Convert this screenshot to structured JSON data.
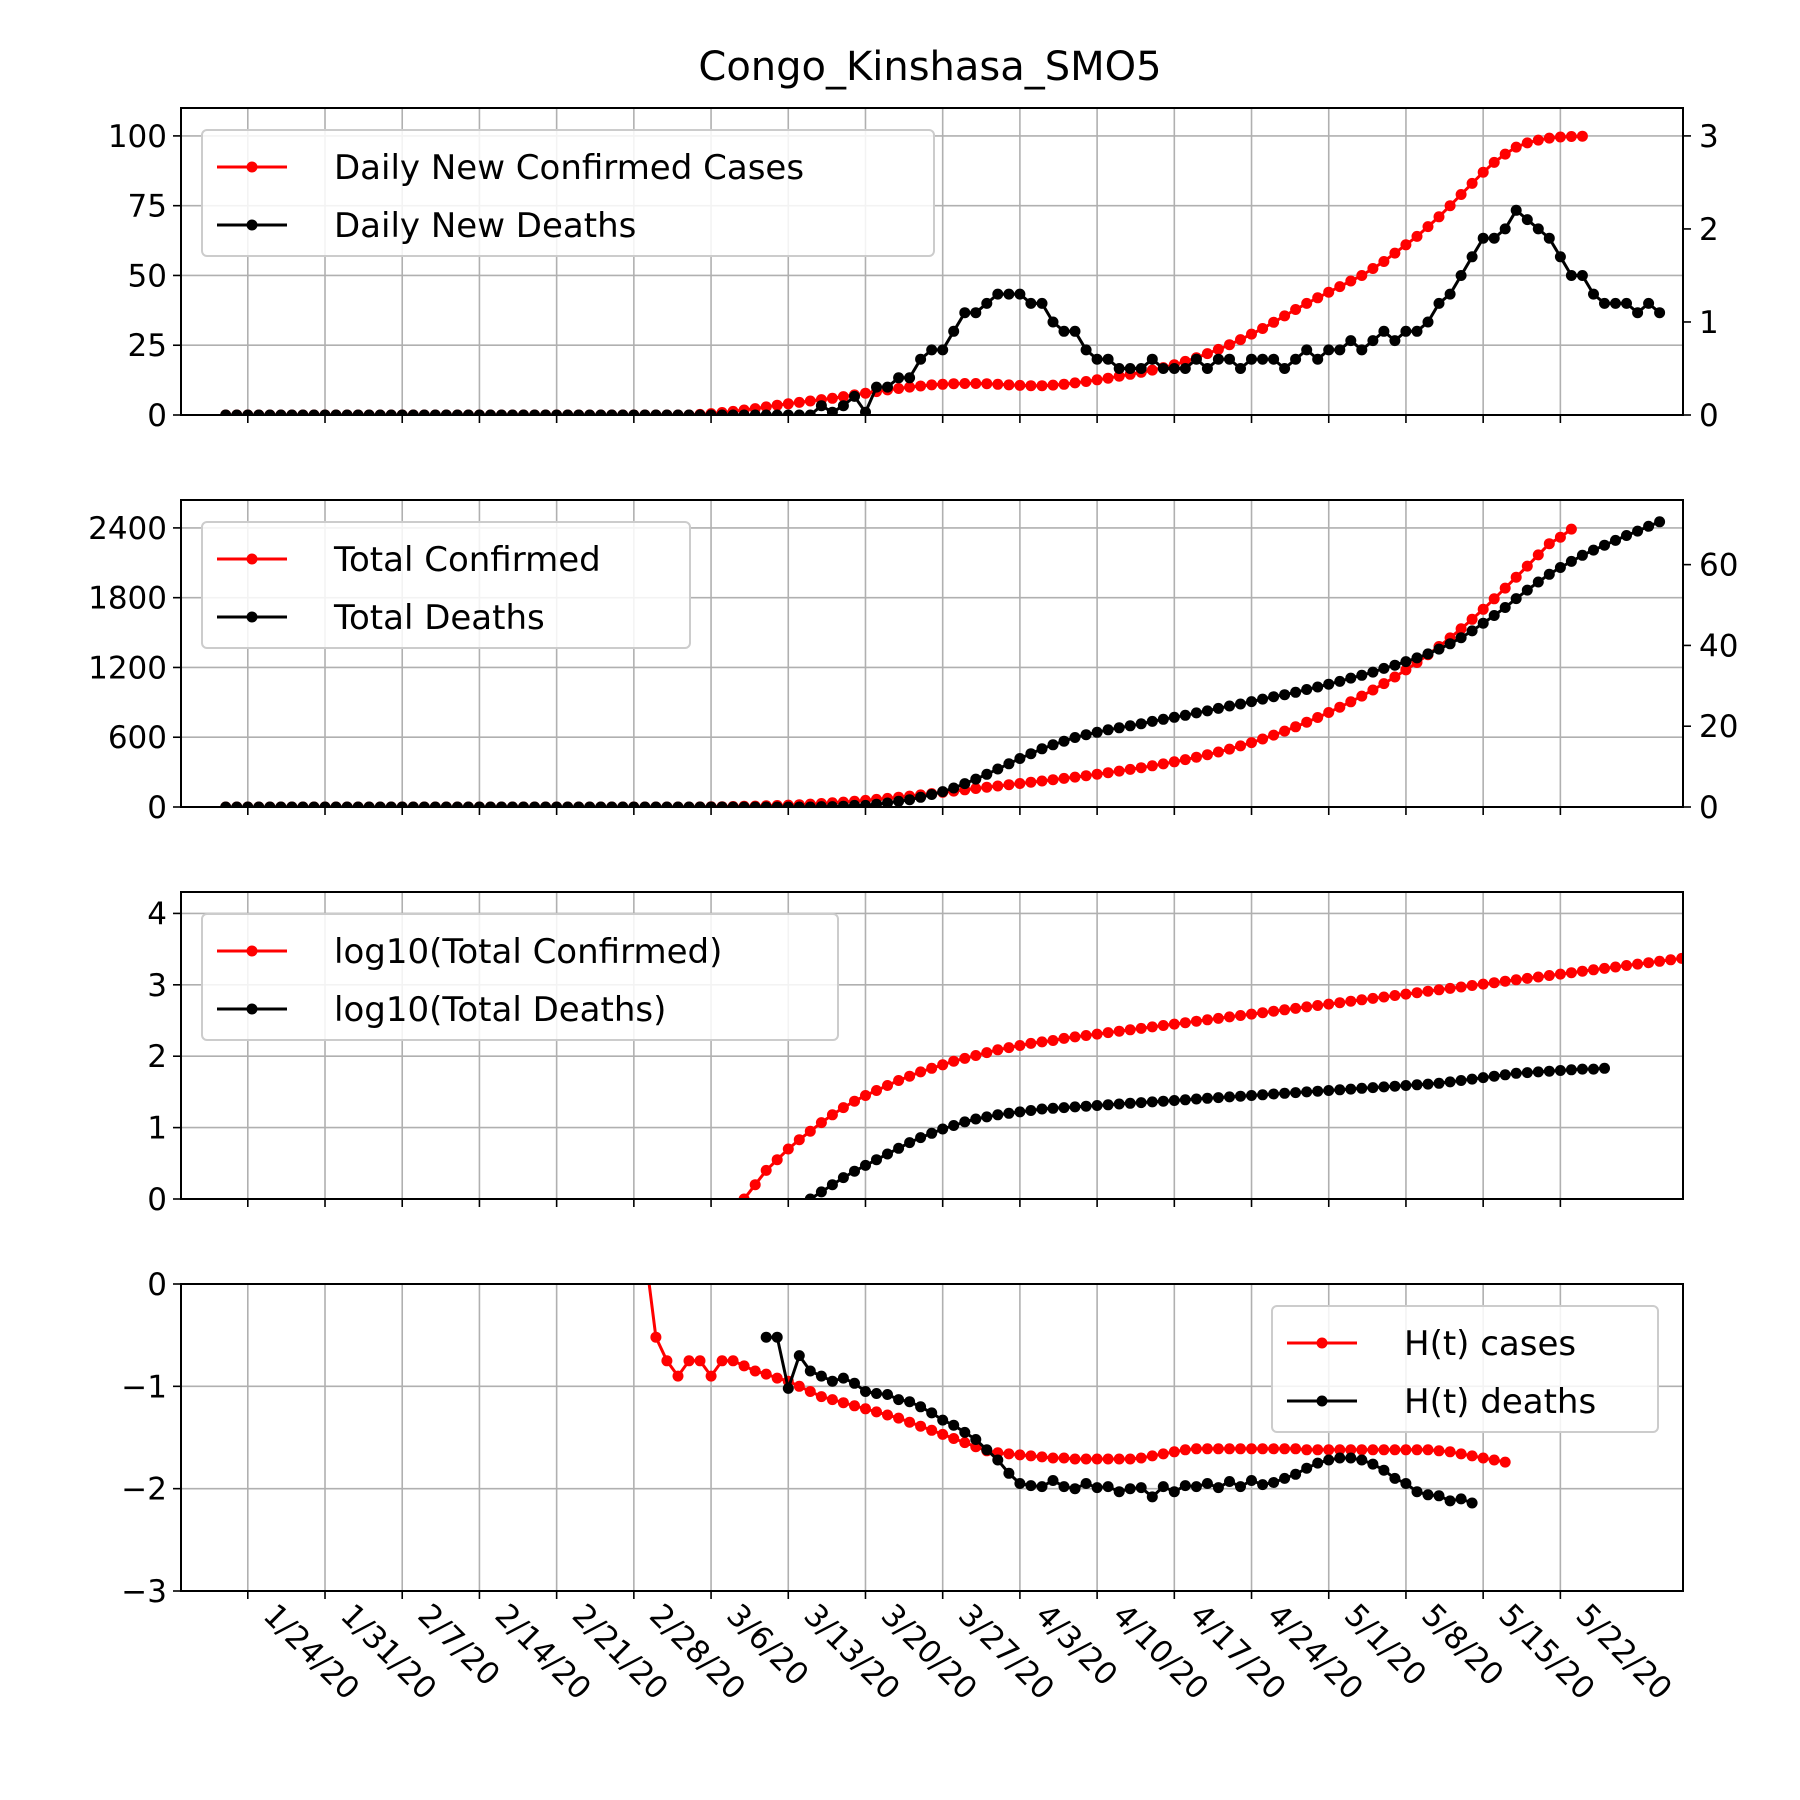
{
  "title": "Congo_Kinshasa_SMO5",
  "colors": {
    "cases": "#ff0000",
    "deaths": "#000000",
    "grid": "#b0b0b0",
    "legend_border": "#cccccc"
  },
  "x_ticks": [
    "1/24/20",
    "1/31/20",
    "2/7/20",
    "2/14/20",
    "2/21/20",
    "2/28/20",
    "3/6/20",
    "3/13/20",
    "3/20/20",
    "3/27/20",
    "4/3/20",
    "4/10/20",
    "4/17/20",
    "4/24/20",
    "5/1/20",
    "5/8/20",
    "5/15/20",
    "5/22/20"
  ],
  "chart_data": [
    {
      "type": "line",
      "x": {
        "start": "1/22/20",
        "end": "5/25/20",
        "step": "1 day"
      },
      "grid": true,
      "legend_position": "upper left",
      "ylim": [
        0,
        110
      ],
      "y_ticks": [
        "0",
        "25",
        "50",
        "75",
        "100"
      ],
      "y2lim": [
        0,
        3.3
      ],
      "y2_ticks": [
        "0",
        "1",
        "2",
        "3"
      ],
      "series": [
        {
          "name": "Daily New Confirmed Cases",
          "color": "#ff0000",
          "axis": "left",
          "start": "1/22/20",
          "values": [
            0,
            0,
            0,
            0,
            0,
            0,
            0,
            0,
            0,
            0,
            0,
            0,
            0,
            0,
            0,
            0,
            0,
            0,
            0,
            0,
            0,
            0,
            0,
            0,
            0,
            0,
            0,
            0,
            0,
            0,
            0,
            0,
            0,
            0,
            0,
            0,
            0,
            0,
            0,
            0,
            0,
            0,
            0,
            0.2,
            0.5,
            0.9,
            1.3,
            1.8,
            2.3,
            2.9,
            3.5,
            4.0,
            4.5,
            5.0,
            5.5,
            6.0,
            6.6,
            7.2,
            7.8,
            8.4,
            9.0,
            9.5,
            10.0,
            10.4,
            10.8,
            11.0,
            11.2,
            11.3,
            11.3,
            11.2,
            11.0,
            10.8,
            10.6,
            10.5,
            10.5,
            10.7,
            11.0,
            11.5,
            12.0,
            12.6,
            13.2,
            13.9,
            14.6,
            15.3,
            16.1,
            17.0,
            18.0,
            19.2,
            20.5,
            22.0,
            23.5,
            25.2,
            27.0,
            29.0,
            31.0,
            33.2,
            35.5,
            37.8,
            40.0,
            42.0,
            44.0,
            46.0,
            48.0,
            50.0,
            52.5,
            55.0,
            58.0,
            61.0,
            64.0,
            67.5,
            71.0,
            75.0,
            79.0,
            83.0,
            87.0,
            90.5,
            93.5,
            96.0,
            97.5,
            98.5,
            99.2,
            99.6,
            99.8,
            99.9
          ]
        },
        {
          "name": "Daily New Deaths",
          "color": "#000000",
          "axis": "right",
          "start": "1/22/20",
          "values": [
            0,
            0,
            0,
            0,
            0,
            0,
            0,
            0,
            0,
            0,
            0,
            0,
            0,
            0,
            0,
            0,
            0,
            0,
            0,
            0,
            0,
            0,
            0,
            0,
            0,
            0,
            0,
            0,
            0,
            0,
            0,
            0,
            0,
            0,
            0,
            0,
            0,
            0,
            0,
            0,
            0,
            0,
            0,
            0,
            0,
            0,
            0,
            0,
            0,
            0,
            0,
            0,
            0,
            0,
            0.1,
            0.03,
            0.1,
            0.2,
            0.03,
            0.3,
            0.3,
            0.4,
            0.4,
            0.6,
            0.7,
            0.7,
            0.9,
            1.1,
            1.1,
            1.2,
            1.3,
            1.3,
            1.3,
            1.2,
            1.2,
            1.0,
            0.9,
            0.9,
            0.7,
            0.6,
            0.6,
            0.5,
            0.5,
            0.5,
            0.6,
            0.5,
            0.5,
            0.5,
            0.6,
            0.5,
            0.6,
            0.6,
            0.5,
            0.6,
            0.6,
            0.6,
            0.5,
            0.6,
            0.7,
            0.6,
            0.7,
            0.7,
            0.8,
            0.7,
            0.8,
            0.9,
            0.8,
            0.9,
            0.9,
            1.0,
            1.2,
            1.3,
            1.5,
            1.7,
            1.9,
            1.9,
            2.0,
            2.2,
            2.1,
            2.0,
            1.9,
            1.7,
            1.5,
            1.5,
            1.3,
            1.2,
            1.2,
            1.2,
            1.1,
            1.2,
            1.1
          ]
        }
      ]
    },
    {
      "type": "line",
      "x": {
        "start": "1/22/20",
        "end": "5/25/20",
        "step": "1 day"
      },
      "grid": true,
      "legend_position": "upper left",
      "ylim": [
        0,
        2640
      ],
      "y_ticks": [
        "0",
        "600",
        "1200",
        "1800",
        "2400"
      ],
      "y2lim": [
        0,
        76
      ],
      "y2_ticks": [
        "0",
        "20",
        "40",
        "60"
      ],
      "series": [
        {
          "name": "Total Confirmed",
          "color": "#ff0000",
          "axis": "left",
          "start": "1/22/20",
          "values": [
            0,
            0,
            0,
            0,
            0,
            0,
            0,
            0,
            0,
            0,
            0,
            0,
            0,
            0,
            0,
            0,
            0,
            0,
            0,
            0,
            0,
            0,
            0,
            0,
            0,
            0,
            0,
            0,
            0,
            0,
            0,
            0,
            0,
            0,
            0,
            0,
            0,
            0,
            0,
            0,
            0,
            0,
            0,
            1,
            2,
            3,
            4,
            6,
            8,
            10,
            13,
            16,
            20,
            25,
            30,
            36,
            42,
            49,
            57,
            65,
            74,
            84,
            94,
            104,
            115,
            126,
            137,
            148,
            159,
            170,
            181,
            192,
            202,
            213,
            224,
            235,
            246,
            257,
            269,
            282,
            295,
            309,
            323,
            338,
            354,
            371,
            389,
            408,
            428,
            450,
            473,
            498,
            525,
            554,
            585,
            618,
            653,
            690,
            729,
            770,
            813,
            858,
            905,
            954,
            1006,
            1061,
            1118,
            1179,
            1243,
            1310,
            1380,
            1454,
            1532,
            1614,
            1700,
            1790,
            1882,
            1976,
            2072,
            2168,
            2264,
            2320,
            2390
          ]
        },
        {
          "name": "Total Deaths",
          "color": "#000000",
          "axis": "right",
          "start": "1/22/20",
          "values": [
            0,
            0,
            0,
            0,
            0,
            0,
            0,
            0,
            0,
            0,
            0,
            0,
            0,
            0,
            0,
            0,
            0,
            0,
            0,
            0,
            0,
            0,
            0,
            0,
            0,
            0,
            0,
            0,
            0,
            0,
            0,
            0,
            0,
            0,
            0,
            0,
            0,
            0,
            0,
            0,
            0,
            0,
            0,
            0,
            0,
            0,
            0,
            0,
            0,
            0,
            0,
            0,
            0,
            0,
            0.1,
            0.1,
            0.2,
            0.4,
            0.4,
            0.7,
            1.0,
            1.4,
            1.8,
            2.4,
            3.1,
            3.8,
            4.7,
            5.8,
            6.9,
            8.1,
            9.4,
            10.7,
            12.0,
            13.2,
            14.4,
            15.4,
            16.3,
            17.2,
            17.9,
            18.5,
            19.1,
            19.6,
            20.1,
            20.6,
            21.2,
            21.7,
            22.2,
            22.7,
            23.3,
            23.8,
            24.4,
            25.0,
            25.5,
            26.1,
            26.7,
            27.3,
            27.8,
            28.4,
            29.1,
            29.7,
            30.4,
            31.1,
            31.9,
            32.6,
            33.4,
            34.3,
            35.1,
            36.0,
            36.9,
            37.9,
            39.1,
            40.4,
            41.9,
            43.6,
            45.5,
            47.4,
            49.4,
            51.6,
            53.7,
            55.7,
            57.6,
            59.3,
            60.8,
            62.3,
            63.6,
            64.8,
            66.0,
            67.2,
            68.3,
            69.5,
            70.6
          ]
        }
      ]
    },
    {
      "type": "line",
      "x": {
        "start": "1/22/20",
        "end": "5/25/20",
        "step": "1 day"
      },
      "grid": true,
      "legend_position": "upper left",
      "ylim": [
        0,
        4.3
      ],
      "y_ticks": [
        "0",
        "1",
        "2",
        "3",
        "4"
      ],
      "series": [
        {
          "name": "log10(Total Confirmed)",
          "color": "#ff0000",
          "start": "3/9/20",
          "values": [
            0.0,
            0.2,
            0.4,
            0.55,
            0.7,
            0.83,
            0.95,
            1.07,
            1.18,
            1.28,
            1.37,
            1.45,
            1.52,
            1.59,
            1.66,
            1.72,
            1.78,
            1.83,
            1.88,
            1.93,
            1.97,
            2.01,
            2.05,
            2.09,
            2.12,
            2.15,
            2.18,
            2.2,
            2.22,
            2.25,
            2.27,
            2.29,
            2.31,
            2.33,
            2.35,
            2.37,
            2.39,
            2.41,
            2.43,
            2.45,
            2.47,
            2.49,
            2.51,
            2.53,
            2.55,
            2.57,
            2.59,
            2.61,
            2.63,
            2.65,
            2.67,
            2.69,
            2.71,
            2.73,
            2.75,
            2.77,
            2.79,
            2.81,
            2.83,
            2.85,
            2.87,
            2.89,
            2.91,
            2.93,
            2.95,
            2.97,
            2.99,
            3.01,
            3.03,
            3.05,
            3.07,
            3.09,
            3.11,
            3.13,
            3.15,
            3.17,
            3.19,
            3.21,
            3.23,
            3.25,
            3.27,
            3.29,
            3.31,
            3.33,
            3.35,
            3.37,
            3.38
          ]
        },
        {
          "name": "log10(Total Deaths)",
          "color": "#000000",
          "start": "3/15/20",
          "values": [
            0.0,
            0.1,
            0.2,
            0.3,
            0.39,
            0.47,
            0.55,
            0.63,
            0.71,
            0.79,
            0.86,
            0.92,
            0.98,
            1.03,
            1.08,
            1.12,
            1.15,
            1.18,
            1.2,
            1.22,
            1.24,
            1.26,
            1.27,
            1.28,
            1.29,
            1.3,
            1.31,
            1.32,
            1.33,
            1.34,
            1.35,
            1.36,
            1.37,
            1.38,
            1.39,
            1.4,
            1.41,
            1.42,
            1.43,
            1.44,
            1.45,
            1.46,
            1.47,
            1.48,
            1.49,
            1.5,
            1.51,
            1.52,
            1.53,
            1.54,
            1.55,
            1.56,
            1.57,
            1.58,
            1.59,
            1.6,
            1.61,
            1.62,
            1.64,
            1.66,
            1.68,
            1.7,
            1.72,
            1.74,
            1.76,
            1.77,
            1.78,
            1.79,
            1.8,
            1.81,
            1.82,
            1.82,
            1.83
          ]
        }
      ]
    },
    {
      "type": "line",
      "x": {
        "start": "1/22/20",
        "end": "5/25/20",
        "step": "1 day"
      },
      "grid": true,
      "legend_position": "upper right",
      "ylim": [
        -3,
        0
      ],
      "y_ticks": [
        "−3",
        "−2",
        "−1",
        "0"
      ],
      "series": [
        {
          "name": "H(t) cases",
          "color": "#ff0000",
          "start": "3/1/20",
          "values": [
            -0.52,
            -0.75,
            -0.9,
            -0.75,
            -0.75,
            -0.9,
            -0.75,
            -0.75,
            -0.8,
            -0.85,
            -0.88,
            -0.92,
            -0.95,
            -1.0,
            -1.05,
            -1.1,
            -1.13,
            -1.16,
            -1.19,
            -1.22,
            -1.25,
            -1.28,
            -1.31,
            -1.35,
            -1.39,
            -1.43,
            -1.47,
            -1.51,
            -1.55,
            -1.59,
            -1.63,
            -1.65,
            -1.66,
            -1.67,
            -1.68,
            -1.69,
            -1.7,
            -1.7,
            -1.71,
            -1.71,
            -1.71,
            -1.71,
            -1.71,
            -1.71,
            -1.7,
            -1.68,
            -1.66,
            -1.64,
            -1.62,
            -1.61,
            -1.61,
            -1.61,
            -1.61,
            -1.61,
            -1.61,
            -1.61,
            -1.61,
            -1.61,
            -1.61,
            -1.62,
            -1.62,
            -1.62,
            -1.62,
            -1.62,
            -1.62,
            -1.62,
            -1.62,
            -1.62,
            -1.62,
            -1.62,
            -1.62,
            -1.63,
            -1.64,
            -1.66,
            -1.68,
            -1.7,
            -1.72,
            -1.74
          ]
        },
        {
          "name": "H(t) deaths",
          "color": "#000000",
          "start": "3/11/20",
          "values": [
            -0.52,
            -0.52,
            -1.02,
            -0.7,
            -0.85,
            -0.9,
            -0.95,
            -0.92,
            -0.97,
            -1.05,
            -1.07,
            -1.08,
            -1.13,
            -1.15,
            -1.2,
            -1.26,
            -1.33,
            -1.38,
            -1.45,
            -1.52,
            -1.62,
            -1.72,
            -1.85,
            -1.95,
            -1.97,
            -1.98,
            -1.92,
            -1.98,
            -2.0,
            -1.95,
            -1.99,
            -1.98,
            -2.03,
            -2.0,
            -1.99,
            -2.08,
            -1.98,
            -2.03,
            -1.97,
            -1.98,
            -1.95,
            -1.99,
            -1.93,
            -1.98,
            -1.92,
            -1.96,
            -1.94,
            -1.9,
            -1.86,
            -1.8,
            -1.75,
            -1.72,
            -1.7,
            -1.7,
            -1.72,
            -1.76,
            -1.82,
            -1.9,
            -1.95,
            -2.03,
            -2.06,
            -2.07,
            -2.12,
            -2.1,
            -2.14
          ]
        }
      ]
    }
  ]
}
